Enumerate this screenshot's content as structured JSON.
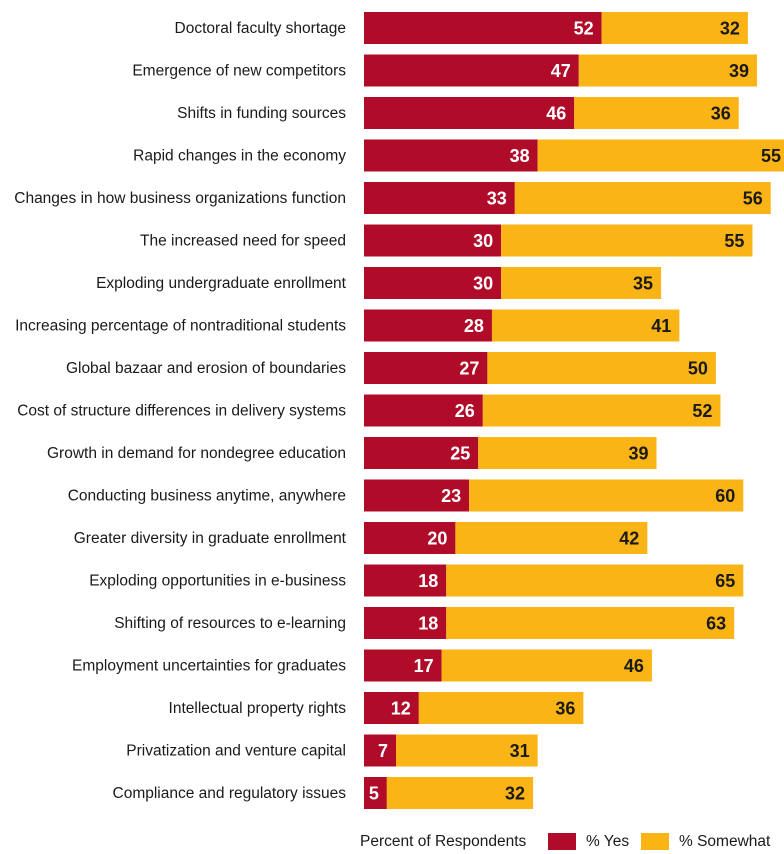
{
  "chart_data": {
    "type": "bar",
    "orientation": "horizontal",
    "stacked": true,
    "categories": [
      "Doctoral faculty shortage",
      "Emergence of new competitors",
      "Shifts in funding sources",
      "Rapid changes in the economy",
      "Changes in how business organizations function",
      "The increased need for speed",
      "Exploding undergraduate enrollment",
      "Increasing percentage of nontraditional students",
      "Global bazaar and erosion of boundaries",
      "Cost of structure differences in delivery systems",
      "Growth in demand for nondegree education",
      "Conducting business anytime, anywhere",
      "Greater diversity in graduate enrollment",
      "Exploding opportunities in e-business",
      "Shifting of resources to e-learning",
      "Employment uncertainties for graduates",
      "Intellectual property rights",
      "Privatization and venture capital",
      "Compliance and regulatory issues"
    ],
    "series": [
      {
        "name": "% Yes",
        "color": "#b00b28",
        "label_color": "#ffffff",
        "values": [
          52,
          47,
          46,
          38,
          33,
          30,
          30,
          28,
          27,
          26,
          25,
          23,
          20,
          18,
          18,
          17,
          12,
          7,
          5
        ]
      },
      {
        "name": "% Somewhat",
        "color": "#fbb415",
        "label_color": "#1a1a1a",
        "values": [
          32,
          39,
          36,
          55,
          56,
          55,
          35,
          41,
          50,
          52,
          39,
          60,
          42,
          65,
          63,
          46,
          36,
          31,
          32
        ]
      }
    ],
    "legend_title": "Percent of Respondents",
    "legend_position": "bottom-right",
    "xlim": [
      0,
      90
    ],
    "grid": false
  }
}
